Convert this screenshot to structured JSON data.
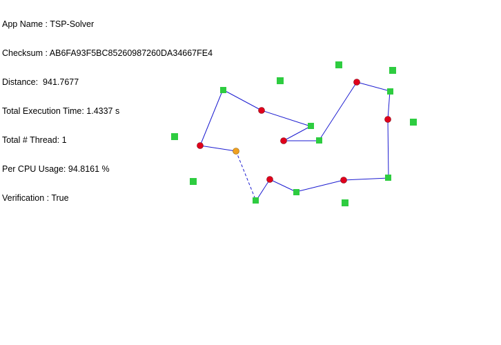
{
  "info": {
    "app_name": "App Name : TSP-Solver",
    "checksum": "Checksum : AB6FA93F5BC85260987260DA34667FE4",
    "distance": "Distance:  941.7677",
    "execution_time": "Total Execution Time: 1.4337 s",
    "threads": "Total # Thread: 1",
    "cpu_usage": "Per CPU Usage: 94.8161 %",
    "verification": "Verification : True"
  },
  "colors": {
    "city": "#2ecc40",
    "visited": "#e0001b",
    "current": "#f0a020",
    "path": "#1a1ad0",
    "outline": "#333333"
  }
}
